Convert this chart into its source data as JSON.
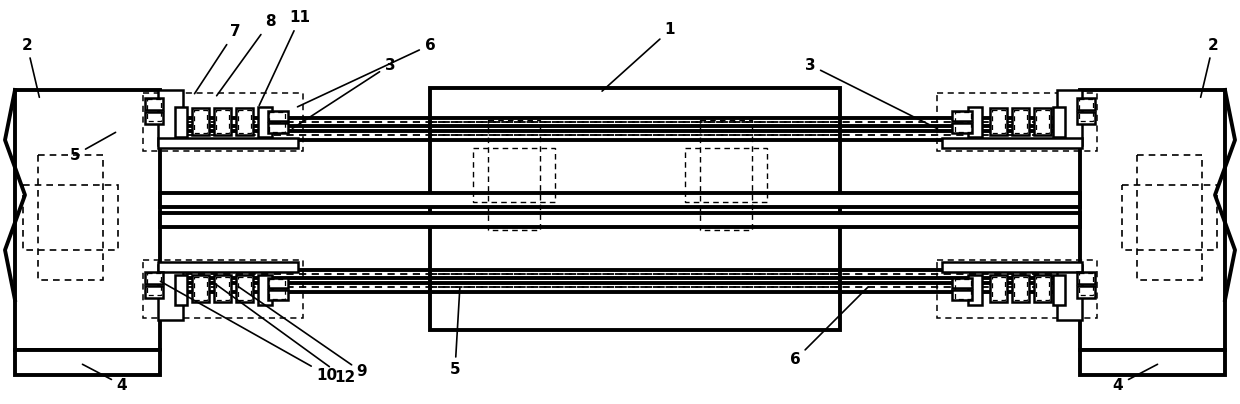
{
  "bg_color": "#ffffff",
  "line_color": "#000000",
  "figsize": [
    12.4,
    4.04
  ],
  "dpi": 100
}
